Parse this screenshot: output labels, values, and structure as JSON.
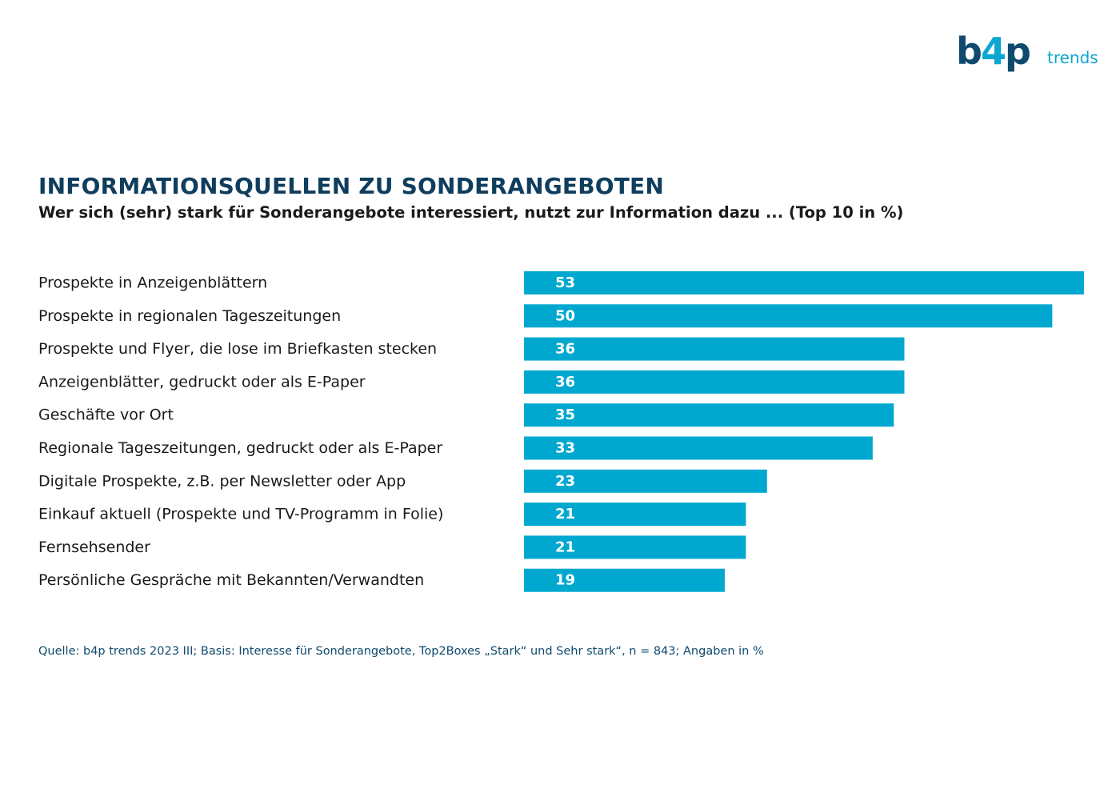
{
  "brand": {
    "logo_main": "b4p",
    "logo_sub": "trends"
  },
  "header": {
    "title": "INFORMATIONSQUELLEN ZU SONDERANGEBOTEN",
    "subtitle": "Wer sich (sehr) stark für Sonderangebote interessiert, nutzt zur Information dazu ... (Top 10 in %)"
  },
  "colors": {
    "bar": "#00a8d0",
    "title": "#0f3d5e",
    "label": "#1a1a1a",
    "value_text": "#ffffff"
  },
  "chart_data": {
    "type": "bar",
    "orientation": "horizontal",
    "categories": [
      "Prospekte in Anzeigenblättern",
      "Prospekte in regionalen Tageszeitungen",
      "Prospekte und Flyer, die lose im Briefkasten stecken",
      "Anzeigenblätter, gedruckt oder als E-Paper",
      "Geschäfte vor Ort",
      "Regionale Tageszeitungen, gedruckt oder als E-Paper",
      "Digitale Prospekte, z.B. per Newsletter oder App",
      "Einkauf aktuell (Prospekte und TV-Programm in Folie)",
      "Fernsehsender",
      "Persönliche Gespräche mit Bekannten/Verwandten"
    ],
    "values": [
      53,
      50,
      36,
      36,
      35,
      33,
      23,
      21,
      21,
      19
    ],
    "value_labels": [
      "53",
      "50",
      "36",
      "36",
      "35",
      "33",
      "23",
      "21",
      "21",
      "19"
    ],
    "xlim": [
      0,
      53
    ],
    "grid": false,
    "title": "INFORMATIONSQUELLEN ZU SONDERANGEBOTEN",
    "xlabel": "",
    "ylabel": ""
  },
  "footer": {
    "source": "Quelle: b4p trends 2023 III; Basis: Interesse für Sonderangebote, Top2Boxes „Stark“ und Sehr stark“, n = 843; Angaben in %"
  }
}
